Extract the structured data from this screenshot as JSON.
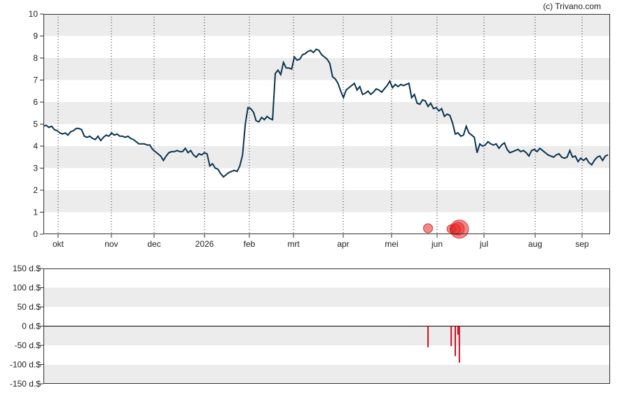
{
  "credit": "(c) Trivano.com",
  "chart_data": [
    {
      "type": "line",
      "title": "",
      "xlabel": "",
      "ylabel": "",
      "ylim": [
        0,
        10
      ],
      "y_ticks": [
        "0",
        "1",
        "2",
        "3",
        "4",
        "5",
        "6",
        "7",
        "8",
        "9",
        "10"
      ],
      "grid": "alternating horizontal bands, dotted vertical month lines",
      "x_ticks": [
        "okt",
        "nov",
        "dec",
        "2026",
        "feb",
        "mrt",
        "apr",
        "mei",
        "jun",
        "jul",
        "aug",
        "sep"
      ],
      "line_color": "#0b3350",
      "series": [
        {
          "points": [
            [
              0,
              4.9
            ],
            [
              2,
              4.95
            ],
            [
              4,
              4.85
            ],
            [
              6,
              4.9
            ],
            [
              8,
              4.75
            ],
            [
              10,
              4.7
            ],
            [
              12,
              4.6
            ],
            [
              14,
              4.55
            ],
            [
              16,
              4.6
            ],
            [
              18,
              4.5
            ],
            [
              20,
              4.65
            ],
            [
              22,
              4.7
            ],
            [
              24,
              4.8
            ],
            [
              26,
              4.8
            ],
            [
              28,
              4.75
            ],
            [
              30,
              4.45
            ],
            [
              32,
              4.4
            ],
            [
              34,
              4.45
            ],
            [
              36,
              4.35
            ],
            [
              38,
              4.3
            ],
            [
              40,
              4.45
            ],
            [
              42,
              4.25
            ],
            [
              44,
              4.4
            ],
            [
              46,
              4.5
            ],
            [
              48,
              4.45
            ],
            [
              50,
              4.6
            ],
            [
              52,
              4.5
            ],
            [
              54,
              4.55
            ],
            [
              56,
              4.45
            ],
            [
              58,
              4.45
            ],
            [
              60,
              4.4
            ],
            [
              62,
              4.45
            ],
            [
              64,
              4.35
            ],
            [
              66,
              4.3
            ],
            [
              68,
              4.2
            ],
            [
              70,
              4.1
            ],
            [
              72,
              4.1
            ],
            [
              74,
              4.1
            ],
            [
              76,
              4.05
            ],
            [
              78,
              4.05
            ],
            [
              80,
              3.85
            ],
            [
              82,
              3.75
            ],
            [
              84,
              3.65
            ],
            [
              86,
              3.55
            ],
            [
              88,
              3.35
            ],
            [
              90,
              3.55
            ],
            [
              92,
              3.7
            ],
            [
              94,
              3.75
            ],
            [
              96,
              3.75
            ],
            [
              98,
              3.8
            ],
            [
              100,
              3.75
            ],
            [
              102,
              3.75
            ],
            [
              104,
              3.9
            ],
            [
              106,
              3.7
            ],
            [
              108,
              3.8
            ],
            [
              110,
              3.6
            ],
            [
              112,
              3.5
            ],
            [
              114,
              3.65
            ],
            [
              116,
              3.6
            ],
            [
              118,
              3.7
            ],
            [
              120,
              3.65
            ],
            [
              122,
              3.1
            ],
            [
              124,
              3.2
            ],
            [
              126,
              3.0
            ],
            [
              128,
              2.95
            ],
            [
              130,
              2.75
            ],
            [
              132,
              2.6
            ],
            [
              134,
              2.7
            ],
            [
              136,
              2.8
            ],
            [
              138,
              2.85
            ],
            [
              140,
              2.9
            ],
            [
              142,
              2.85
            ],
            [
              144,
              3.1
            ],
            [
              146,
              3.6
            ],
            [
              148,
              5.0
            ],
            [
              150,
              5.75
            ],
            [
              152,
              5.7
            ],
            [
              154,
              5.55
            ],
            [
              156,
              5.15
            ],
            [
              158,
              5.1
            ],
            [
              160,
              5.3
            ],
            [
              162,
              5.2
            ],
            [
              164,
              5.35
            ],
            [
              166,
              5.25
            ],
            [
              168,
              5.2
            ],
            [
              170,
              7.3
            ],
            [
              172,
              7.45
            ],
            [
              174,
              7.25
            ],
            [
              176,
              7.8
            ],
            [
              178,
              7.55
            ],
            [
              180,
              7.55
            ],
            [
              182,
              7.5
            ],
            [
              184,
              8.05
            ],
            [
              186,
              7.9
            ],
            [
              188,
              7.95
            ],
            [
              190,
              8.15
            ],
            [
              192,
              8.2
            ],
            [
              194,
              8.3
            ],
            [
              196,
              8.35
            ],
            [
              198,
              8.25
            ],
            [
              200,
              8.4
            ],
            [
              202,
              8.35
            ],
            [
              204,
              8.15
            ],
            [
              206,
              8.05
            ],
            [
              208,
              7.95
            ],
            [
              210,
              7.75
            ],
            [
              212,
              7.15
            ],
            [
              214,
              7.05
            ],
            [
              216,
              6.85
            ],
            [
              218,
              6.5
            ],
            [
              220,
              6.2
            ],
            [
              222,
              6.55
            ],
            [
              224,
              6.65
            ],
            [
              226,
              6.75
            ],
            [
              228,
              6.85
            ],
            [
              230,
              6.55
            ],
            [
              232,
              6.7
            ],
            [
              234,
              6.35
            ],
            [
              236,
              6.4
            ],
            [
              238,
              6.5
            ],
            [
              240,
              6.35
            ],
            [
              242,
              6.45
            ],
            [
              244,
              6.6
            ],
            [
              246,
              6.55
            ],
            [
              248,
              6.45
            ],
            [
              250,
              6.6
            ],
            [
              252,
              6.75
            ],
            [
              254,
              6.95
            ],
            [
              256,
              6.65
            ],
            [
              258,
              6.8
            ],
            [
              260,
              6.7
            ],
            [
              262,
              6.8
            ],
            [
              264,
              6.75
            ],
            [
              266,
              6.8
            ],
            [
              268,
              6.85
            ],
            [
              270,
              6.2
            ],
            [
              272,
              6.35
            ],
            [
              274,
              5.95
            ],
            [
              276,
              5.9
            ],
            [
              278,
              6.1
            ],
            [
              280,
              6.05
            ],
            [
              282,
              5.8
            ],
            [
              284,
              5.95
            ],
            [
              286,
              5.7
            ],
            [
              288,
              5.75
            ],
            [
              290,
              5.6
            ],
            [
              292,
              5.7
            ],
            [
              294,
              5.35
            ],
            [
              296,
              5.45
            ],
            [
              298,
              5.4
            ],
            [
              300,
              5.05
            ],
            [
              302,
              4.55
            ],
            [
              304,
              4.6
            ],
            [
              306,
              4.45
            ],
            [
              308,
              4.5
            ],
            [
              310,
              4.9
            ],
            [
              312,
              4.6
            ],
            [
              314,
              4.5
            ],
            [
              316,
              4.4
            ],
            [
              318,
              3.7
            ],
            [
              320,
              4.1
            ],
            [
              322,
              4.0
            ],
            [
              324,
              4.05
            ],
            [
              326,
              4.2
            ],
            [
              328,
              4.1
            ],
            [
              330,
              4.05
            ],
            [
              332,
              4.1
            ],
            [
              334,
              3.9
            ],
            [
              336,
              4.05
            ],
            [
              338,
              4.15
            ],
            [
              340,
              3.85
            ],
            [
              342,
              3.7
            ],
            [
              344,
              3.75
            ],
            [
              346,
              3.8
            ],
            [
              348,
              3.85
            ],
            [
              350,
              3.75
            ],
            [
              352,
              3.8
            ],
            [
              354,
              3.7
            ],
            [
              356,
              3.55
            ],
            [
              358,
              3.8
            ],
            [
              360,
              3.85
            ],
            [
              362,
              3.75
            ],
            [
              364,
              3.9
            ],
            [
              366,
              3.8
            ],
            [
              368,
              3.7
            ],
            [
              370,
              3.6
            ],
            [
              372,
              3.55
            ],
            [
              374,
              3.5
            ],
            [
              376,
              3.6
            ],
            [
              378,
              3.65
            ],
            [
              380,
              3.5
            ],
            [
              382,
              3.45
            ],
            [
              384,
              3.5
            ],
            [
              386,
              3.8
            ],
            [
              388,
              3.5
            ],
            [
              390,
              3.55
            ],
            [
              392,
              3.3
            ],
            [
              394,
              3.45
            ],
            [
              396,
              3.35
            ],
            [
              398,
              3.45
            ],
            [
              400,
              3.25
            ],
            [
              402,
              3.15
            ],
            [
              404,
              3.35
            ],
            [
              406,
              3.5
            ],
            [
              408,
              3.55
            ],
            [
              410,
              3.35
            ],
            [
              412,
              3.55
            ],
            [
              414,
              3.6
            ]
          ]
        }
      ],
      "bubbles": [
        {
          "x": 282,
          "value": 0.27,
          "r": 6.5
        },
        {
          "x": 299,
          "value": 0.24,
          "r": 6
        },
        {
          "x": 302,
          "value": 0.22,
          "r": 7.5
        },
        {
          "x": 304,
          "value": 0.25,
          "r": 9
        },
        {
          "x": 305,
          "value": 0.23,
          "r": 13
        }
      ]
    },
    {
      "type": "bar",
      "title": "",
      "xlabel": "",
      "ylabel": "",
      "ylim": [
        -150,
        150
      ],
      "y_ticks": [
        "150 d.$",
        "100 d.$",
        "50 d.$",
        "0 d.$",
        "-50 d.$",
        "-100 d.$",
        "-150 d.$"
      ],
      "bar_color": "#cc1122",
      "bars": [
        {
          "x": 282,
          "value": -55
        },
        {
          "x": 299,
          "value": -52
        },
        {
          "x": 302,
          "value": -78
        },
        {
          "x": 304,
          "value": -22
        },
        {
          "x": 305,
          "value": -95
        }
      ]
    }
  ]
}
